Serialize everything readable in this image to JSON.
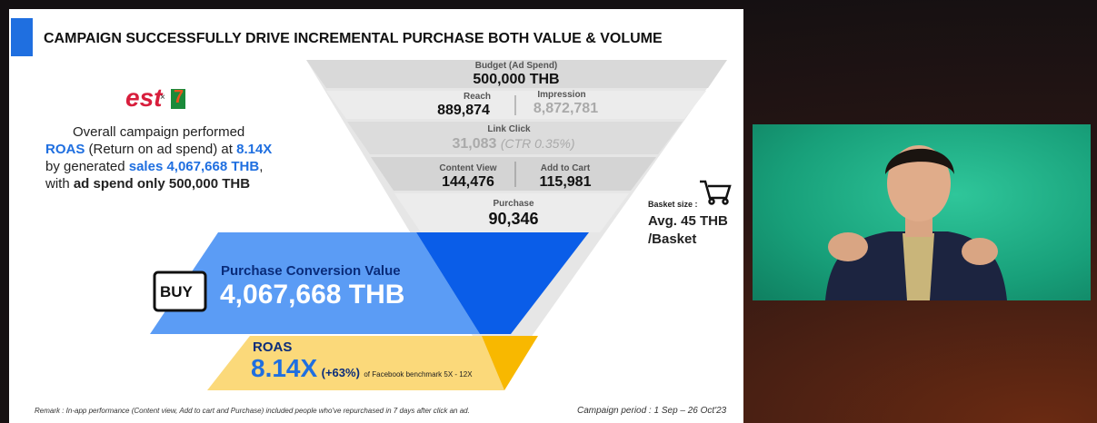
{
  "header": {
    "title": "CAMPAIGN SUCCESSFULLY DRIVE INCREMENTAL PURCHASE BOTH VALUE & VOLUME"
  },
  "logos": {
    "left": "est",
    "separator": "×",
    "right": "7"
  },
  "summary": {
    "line1": "Overall campaign performed",
    "line2": [
      "ROAS",
      " (Return on ad spend) at ",
      "8.14X"
    ],
    "line3": [
      "by generated ",
      "sales 4,067,668 THB",
      ","
    ],
    "line4": [
      "with ",
      "ad spend only 500,000 THB"
    ]
  },
  "funnel": {
    "budget": {
      "label": "Budget (Ad Spend)",
      "value": "500,000 THB"
    },
    "reach": {
      "label": "Reach",
      "value": "889,874"
    },
    "impression": {
      "label": "Impression",
      "value": "8,872,781"
    },
    "link_click": {
      "label": "Link Click",
      "value": "31,083",
      "note": "(CTR 0.35%)"
    },
    "content_view": {
      "label": "Content View",
      "value": "144,476"
    },
    "add_to_cart": {
      "label": "Add to Cart",
      "value": "115,981"
    },
    "purchase": {
      "label": "Purchase",
      "value": "90,346"
    }
  },
  "basket": {
    "label": "Basket size :",
    "line1": "Avg. 45 THB",
    "line2": "/Basket"
  },
  "conversion": {
    "icon": "BUY",
    "label": "Purchase Conversion Value",
    "value": "4,067,668 THB"
  },
  "roas": {
    "label": "ROAS",
    "value": "8.14X",
    "change": "(+63%)",
    "benchmark": "of Facebook benchmark 5X - 12X"
  },
  "footer": {
    "remark": "Remark : In-app performance (Content view, Add to cart and Purchase) included people who've repurchased in 7 days after click an ad.",
    "period": "Campaign period : 1 Sep – 26 Oct'23"
  }
}
